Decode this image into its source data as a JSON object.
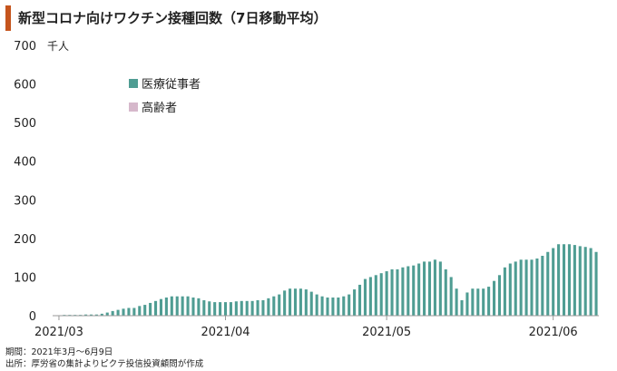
{
  "title": "新型コロナ向けワクチン接種回数（7日移動平均）",
  "notes": {
    "period": "期間：2021年3月～6月9日",
    "source": "出所：厚労省の集計よりピクテ投信投資顧問が作成"
  },
  "colors": {
    "series_0": "#4f9d93",
    "series_1": "#d6b8cb",
    "title_accent": "#c5541d",
    "axis": "#999999"
  },
  "chart_data": {
    "type": "bar",
    "stacked": true,
    "title": "新型コロナ向けワクチン接種回数（7日移動平均）",
    "unit_label": "千人",
    "xlabel": "",
    "ylabel": "",
    "ylim": [
      0,
      700
    ],
    "yticks": [
      0,
      100,
      200,
      300,
      400,
      500,
      600,
      700
    ],
    "ytick_labels": [
      "0",
      "100",
      "200",
      "300",
      "400",
      "500",
      "600",
      "700"
    ],
    "xtick_labels": [
      {
        "label": "2021/03",
        "category": "03-01"
      },
      {
        "label": "2021/04",
        "category": "04-01"
      },
      {
        "label": "2021/05",
        "category": "05-01"
      },
      {
        "label": "2021/06",
        "category": "06-01"
      }
    ],
    "legend_position": "top-left",
    "grid": false,
    "categories": [
      "03-01",
      "03-02",
      "03-03",
      "03-04",
      "03-05",
      "03-06",
      "03-07",
      "03-08",
      "03-09",
      "03-10",
      "03-11",
      "03-12",
      "03-13",
      "03-14",
      "03-15",
      "03-16",
      "03-17",
      "03-18",
      "03-19",
      "03-20",
      "03-21",
      "03-22",
      "03-23",
      "03-24",
      "03-25",
      "03-26",
      "03-27",
      "03-28",
      "03-29",
      "03-30",
      "03-31",
      "04-01",
      "04-02",
      "04-03",
      "04-04",
      "04-05",
      "04-06",
      "04-07",
      "04-08",
      "04-09",
      "04-10",
      "04-11",
      "04-12",
      "04-13",
      "04-14",
      "04-15",
      "04-16",
      "04-17",
      "04-18",
      "04-19",
      "04-20",
      "04-21",
      "04-22",
      "04-23",
      "04-24",
      "04-25",
      "04-26",
      "04-27",
      "04-28",
      "04-29",
      "04-30",
      "05-01",
      "05-02",
      "05-03",
      "05-04",
      "05-05",
      "05-06",
      "05-07",
      "05-08",
      "05-09",
      "05-10",
      "05-11",
      "05-12",
      "05-13",
      "05-14",
      "05-15",
      "05-16",
      "05-17",
      "05-18",
      "05-19",
      "05-20",
      "05-21",
      "05-22",
      "05-23",
      "05-24",
      "05-25",
      "05-26",
      "05-27",
      "05-28",
      "05-29",
      "05-30",
      "05-31",
      "06-01",
      "06-02",
      "06-03",
      "06-04",
      "06-05",
      "06-06",
      "06-07",
      "06-08",
      "06-09"
    ],
    "series": [
      {
        "name": "医療従事者",
        "values": [
          0,
          2,
          2,
          2,
          2,
          3,
          3,
          3,
          5,
          8,
          12,
          15,
          18,
          20,
          20,
          25,
          28,
          33,
          38,
          43,
          47,
          50,
          50,
          50,
          50,
          47,
          45,
          40,
          37,
          35,
          35,
          35,
          35,
          37,
          38,
          38,
          38,
          40,
          40,
          45,
          50,
          55,
          65,
          70,
          70,
          70,
          68,
          62,
          55,
          50,
          47,
          47,
          47,
          50,
          55,
          68,
          80,
          95,
          100,
          105,
          110,
          115,
          120,
          120,
          125,
          128,
          130,
          135,
          140,
          140,
          145,
          140,
          120,
          100,
          70,
          40,
          60,
          70,
          70,
          70,
          75,
          90,
          105,
          125,
          135,
          140,
          145,
          145,
          145,
          148,
          155,
          165,
          175,
          185,
          185,
          185,
          183,
          180,
          178,
          175,
          165
        ]
      },
      {
        "name": "高齢者",
        "values": [
          0,
          0,
          0,
          0,
          0,
          0,
          0,
          0,
          0,
          0,
          0,
          0,
          0,
          0,
          0,
          0,
          0,
          0,
          0,
          0,
          0,
          0,
          0,
          0,
          0,
          0,
          0,
          0,
          0,
          0,
          0,
          0,
          0,
          0,
          0,
          0,
          0,
          0,
          0,
          0,
          0,
          0,
          0,
          0,
          0,
          0,
          0,
          0,
          0,
          0,
          0,
          0,
          0,
          0,
          0,
          0,
          0,
          0,
          0,
          0,
          0,
          0,
          0,
          0,
          0,
          0,
          0,
          0,
          0,
          0,
          0,
          0,
          0,
          0,
          0,
          0,
          0,
          0,
          0,
          0,
          0,
          0,
          0,
          0,
          0,
          0,
          0,
          0,
          0,
          0,
          0,
          0,
          0,
          0,
          0,
          0,
          0,
          0,
          0,
          0,
          0
        ]
      }
    ]
  }
}
